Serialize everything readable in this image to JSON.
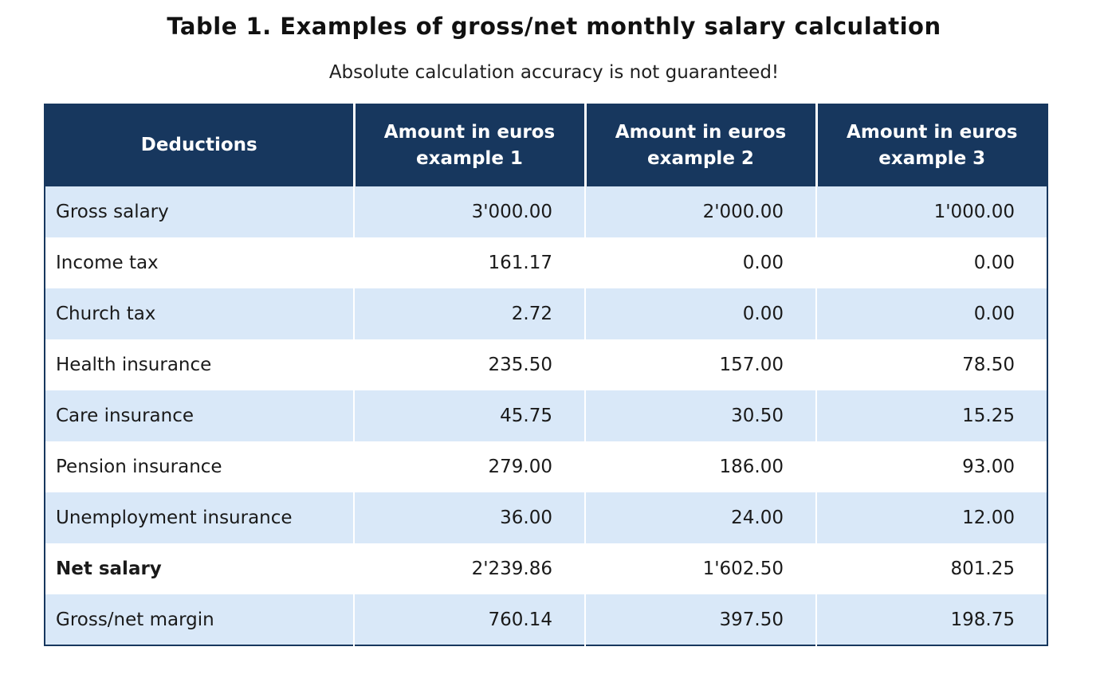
{
  "page": {
    "title": "Table 1. Examples of gross/net monthly salary calculation",
    "subtitle": "Absolute calculation accuracy is not guaranteed!"
  },
  "colors": {
    "header_bg": "#17375e",
    "row_alt": "#d9e8f8",
    "header_text": "#ffffff",
    "body_text": "#1a1a1a"
  },
  "table": {
    "headers": [
      "Deductions",
      "Amount in euros\nexample 1",
      "Amount in euros\nexample 2",
      "Amount in euros\nexample 3"
    ],
    "rows": [
      {
        "label": "Gross salary",
        "values": [
          "3'000.00",
          "2'000.00",
          "1'000.00"
        ],
        "bold": false
      },
      {
        "label": "Income tax",
        "values": [
          "161.17",
          "0.00",
          "0.00"
        ],
        "bold": false
      },
      {
        "label": "Church tax",
        "values": [
          "2.72",
          "0.00",
          "0.00"
        ],
        "bold": false
      },
      {
        "label": "Health insurance",
        "values": [
          "235.50",
          "157.00",
          "78.50"
        ],
        "bold": false
      },
      {
        "label": "Care insurance",
        "values": [
          "45.75",
          "30.50",
          "15.25"
        ],
        "bold": false
      },
      {
        "label": "Pension insurance",
        "values": [
          "279.00",
          "186.00",
          "93.00"
        ],
        "bold": false
      },
      {
        "label": "Unemployment insurance",
        "values": [
          "36.00",
          "24.00",
          "12.00"
        ],
        "bold": false
      },
      {
        "label": "Net salary",
        "values": [
          "2'239.86",
          "1'602.50",
          "801.25"
        ],
        "bold": true
      },
      {
        "label": "Gross/net margin",
        "values": [
          "760.14",
          "397.50",
          "198.75"
        ],
        "bold": false
      }
    ]
  }
}
